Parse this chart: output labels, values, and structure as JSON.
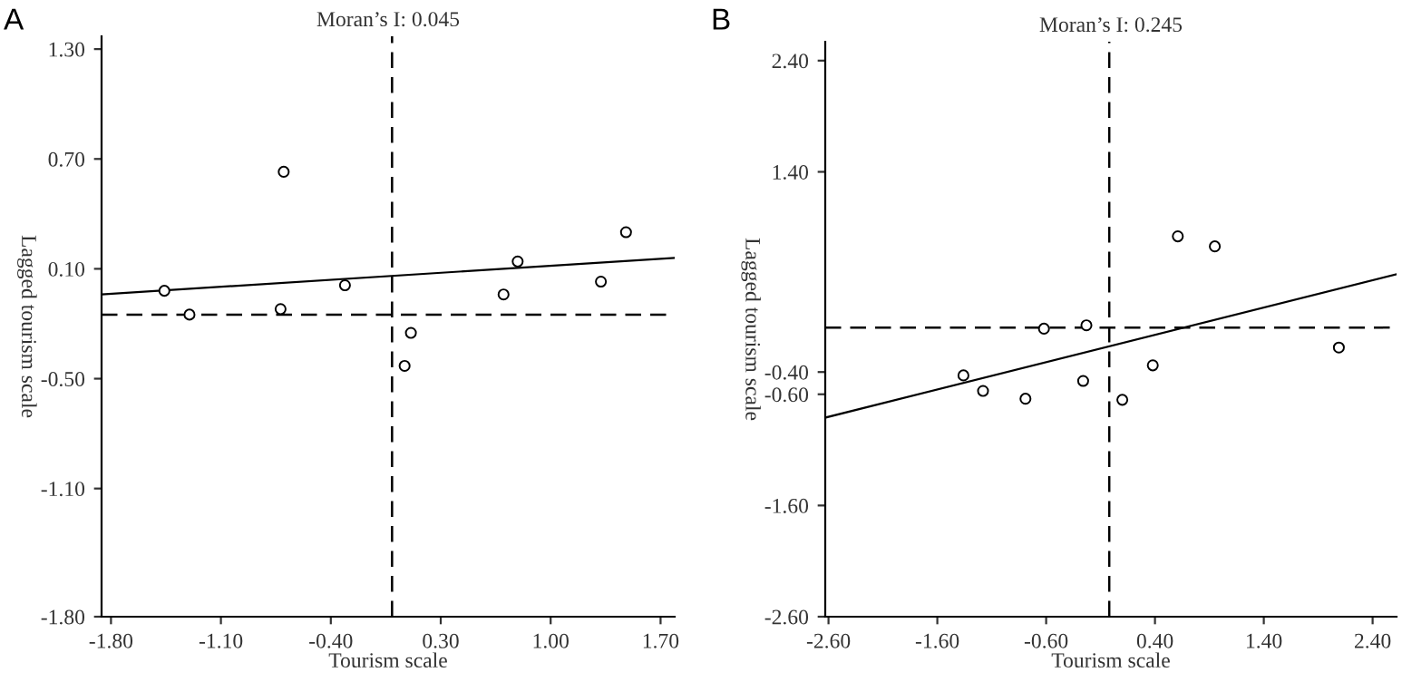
{
  "chart_data": [
    {
      "type": "scatter",
      "title": "Moran’s I: 0.045",
      "xlabel": "Tourism scale",
      "ylabel": "Lagged tourism scale",
      "annotations": [
        "A"
      ],
      "marker": "circle",
      "grid": false,
      "legend": false,
      "xlim": [
        -1.86,
        1.79
      ],
      "ylim": [
        -1.8,
        1.37
      ],
      "xticks": [
        {
          "value": -1.8,
          "label": "-1.80"
        },
        {
          "value": -1.1,
          "label": "-1.10"
        },
        {
          "value": -0.4,
          "label": "-0.40"
        },
        {
          "value": 0.3,
          "label": "0.30"
        },
        {
          "value": 1.0,
          "label": "1.00"
        },
        {
          "value": 1.7,
          "label": "1.70"
        }
      ],
      "yticks": [
        {
          "value": -1.8,
          "label": "-1.80"
        },
        {
          "value": -1.1,
          "label": "-1.10"
        },
        {
          "value": -0.5,
          "label": "-0.50"
        },
        {
          "value": 0.1,
          "label": "0.10"
        },
        {
          "value": 0.7,
          "label": "0.70"
        },
        {
          "value": 1.3,
          "label": "1.30"
        }
      ],
      "series": [
        {
          "type": "scatter",
          "color": "#000000",
          "x": [
            -1.46,
            -1.3,
            -0.7,
            -0.72,
            -0.31,
            0.07,
            0.11,
            0.7,
            0.79,
            1.32,
            1.48
          ],
          "values": [
            -0.02,
            -0.15,
            0.63,
            -0.12,
            0.01,
            -0.43,
            -0.25,
            -0.04,
            0.14,
            0.03,
            0.3
          ]
        },
        {
          "type": "line",
          "color": "#000000",
          "line_style": "solid",
          "marker": "none",
          "x": [
            -1.86,
            1.79
          ],
          "values": [
            -0.04,
            0.16
          ]
        }
      ],
      "ref_lines": [
        {
          "axis": "x",
          "value": -0.01,
          "color": "#000000",
          "line_style": "dashed"
        },
        {
          "axis": "y",
          "value": -0.15,
          "color": "#000000",
          "line_style": "dashed"
        }
      ]
    },
    {
      "type": "scatter",
      "title": "Moran’s I: 0.245",
      "xlabel": "Tourism scale",
      "ylabel": "Lagged tourism scale",
      "annotations": [
        "B"
      ],
      "marker": "circle",
      "grid": false,
      "legend": false,
      "xlim": [
        -2.63,
        2.62
      ],
      "ylim": [
        -2.6,
        2.57
      ],
      "xticks": [
        {
          "value": -2.6,
          "label": "-2.60"
        },
        {
          "value": -1.6,
          "label": "-1.60"
        },
        {
          "value": -0.6,
          "label": "-0.60"
        },
        {
          "value": 0.4,
          "label": "0.40"
        },
        {
          "value": 1.4,
          "label": "1.40"
        },
        {
          "value": 2.4,
          "label": "2.40"
        }
      ],
      "yticks": [
        {
          "value": -2.6,
          "label": "-2.60"
        },
        {
          "value": -1.6,
          "label": "-1.60"
        },
        {
          "value": -0.6,
          "label": "-0.60"
        },
        {
          "value": -0.4,
          "label": "-0.40"
        },
        {
          "value": 1.4,
          "label": "1.40"
        },
        {
          "value": 2.4,
          "label": "2.40"
        }
      ],
      "series": [
        {
          "type": "scatter",
          "color": "#000000",
          "x": [
            -1.36,
            -1.18,
            -0.79,
            -0.62,
            -0.26,
            -0.23,
            0.1,
            0.38,
            0.61,
            0.95,
            2.09
          ],
          "values": [
            -0.43,
            -0.57,
            -0.64,
            -0.01,
            -0.48,
            0.02,
            -0.65,
            -0.34,
            0.82,
            0.73,
            -0.18
          ]
        },
        {
          "type": "line",
          "color": "#000000",
          "line_style": "solid",
          "marker": "none",
          "x": [
            -2.63,
            2.62
          ],
          "values": [
            -0.81,
            0.48
          ]
        }
      ],
      "ref_lines": [
        {
          "axis": "x",
          "value": -0.02,
          "color": "#000000",
          "line_style": "dashed"
        },
        {
          "axis": "y",
          "value": 0.0,
          "color": "#000000",
          "line_style": "dashed"
        }
      ]
    }
  ]
}
